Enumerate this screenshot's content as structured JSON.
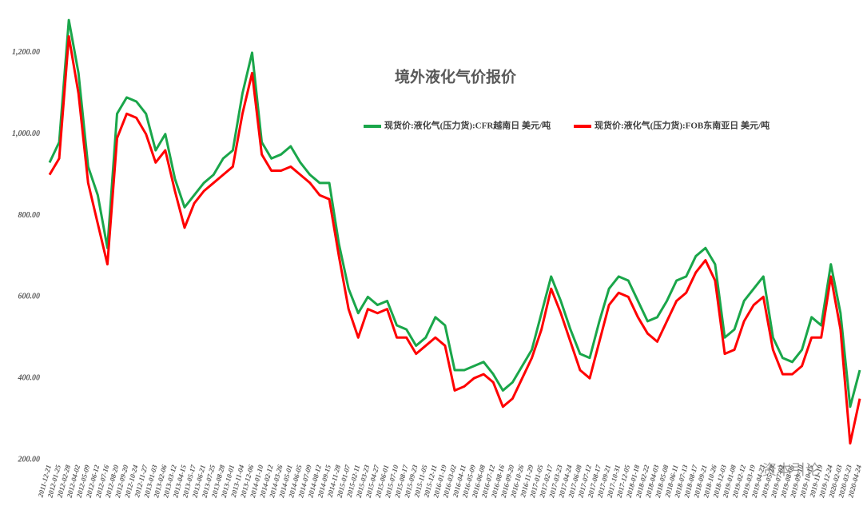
{
  "chart_data": {
    "type": "line",
    "title": "境外液化气价报价",
    "watermark": "资本引论",
    "categories": [
      "2011-12-21",
      "2012-01-25",
      "2012-02-28",
      "2012-04-02",
      "2012-05-09",
      "2012-06-12",
      "2012-07-16",
      "2012-08-20",
      "2012-09-20",
      "2012-10-24",
      "2012-11-27",
      "2013-01-03",
      "2013-02-06",
      "2013-03-12",
      "2013-04-15",
      "2013-05-17",
      "2013-06-21",
      "2013-07-25",
      "2013-08-28",
      "2013-10-01",
      "2013-11-04",
      "2013-12-06",
      "2014-01-10",
      "2014-02-12",
      "2014-03-26",
      "2014-05-01",
      "2014-06-05",
      "2014-07-09",
      "2014-08-12",
      "2014-09-15",
      "2014-11-28",
      "2015-01-07",
      "2015-02-11",
      "2015-03-23",
      "2015-04-27",
      "2015-06-01",
      "2015-07-10",
      "2015-08-17",
      "2015-09-23",
      "2015-11-05",
      "2015-12-11",
      "2016-01-19",
      "2016-03-02",
      "2016-04-11",
      "2016-05-09",
      "2016-06-08",
      "2016-07-12",
      "2016-08-16",
      "2016-09-20",
      "2016-10-26",
      "2016-11-29",
      "2017-01-05",
      "2017-02-17",
      "2017-03-23",
      "2017-04-24",
      "2017-06-08",
      "2017-07-12",
      "2017-08-17",
      "2017-09-21",
      "2017-10-31",
      "2017-12-05",
      "2018-01-18",
      "2018-02-22",
      "2018-04-03",
      "2018-05-08",
      "2018-06-11",
      "2018-07-13",
      "2018-08-17",
      "2018-09-21",
      "2018-10-26",
      "2018-12-03",
      "2019-01-08",
      "2019-02-12",
      "2019-03-19",
      "2019-04-23",
      "2019-05-28",
      "2019-07-02",
      "2019-08-06",
      "2019-09-10",
      "2019-10-15",
      "2019-11-19",
      "2019-12-24",
      "2020-02-03",
      "2020-03-23",
      "2020-04-24"
    ],
    "series": [
      {
        "name": "现货价:液化气(压力货):CFR越南日 美元/吨",
        "color": "#1aa64a",
        "values": [
          930,
          980,
          1280,
          1150,
          920,
          850,
          720,
          1050,
          1090,
          1080,
          1050,
          960,
          1000,
          890,
          820,
          850,
          880,
          900,
          940,
          960,
          1100,
          1200,
          980,
          940,
          950,
          970,
          930,
          900,
          880,
          880,
          730,
          620,
          560,
          600,
          580,
          590,
          530,
          520,
          480,
          500,
          550,
          530,
          420,
          420,
          430,
          440,
          410,
          370,
          390,
          430,
          470,
          560,
          650,
          590,
          520,
          460,
          450,
          540,
          620,
          650,
          640,
          590,
          540,
          550,
          590,
          640,
          650,
          700,
          720,
          680,
          500,
          520,
          590,
          620,
          650,
          500,
          450,
          440,
          470,
          550,
          530,
          680,
          560,
          330,
          420
        ]
      },
      {
        "name": "现货价:液化气(压力货):FOB东南亚日 美元/吨",
        "color": "#ff0000",
        "values": [
          900,
          940,
          1240,
          1100,
          880,
          780,
          680,
          990,
          1050,
          1040,
          1000,
          930,
          960,
          860,
          770,
          830,
          860,
          880,
          900,
          920,
          1050,
          1150,
          950,
          910,
          910,
          920,
          900,
          880,
          850,
          840,
          700,
          570,
          500,
          570,
          560,
          570,
          500,
          500,
          460,
          480,
          500,
          480,
          370,
          380,
          400,
          410,
          390,
          330,
          350,
          400,
          450,
          520,
          620,
          560,
          490,
          420,
          400,
          490,
          580,
          610,
          600,
          550,
          510,
          490,
          540,
          590,
          610,
          660,
          690,
          640,
          460,
          470,
          540,
          580,
          600,
          470,
          410,
          410,
          430,
          500,
          500,
          650,
          520,
          240,
          350
        ]
      }
    ],
    "ylim": [
      200,
      1300
    ],
    "yticks": [
      {
        "value": 200,
        "label": "200.00"
      },
      {
        "value": 400,
        "label": "400.00"
      },
      {
        "value": 600,
        "label": "600.00"
      },
      {
        "value": 800,
        "label": "800.00"
      },
      {
        "value": 1000,
        "label": "1,000.00"
      },
      {
        "value": 1200,
        "label": "1,200.00"
      }
    ],
    "grid": false
  }
}
